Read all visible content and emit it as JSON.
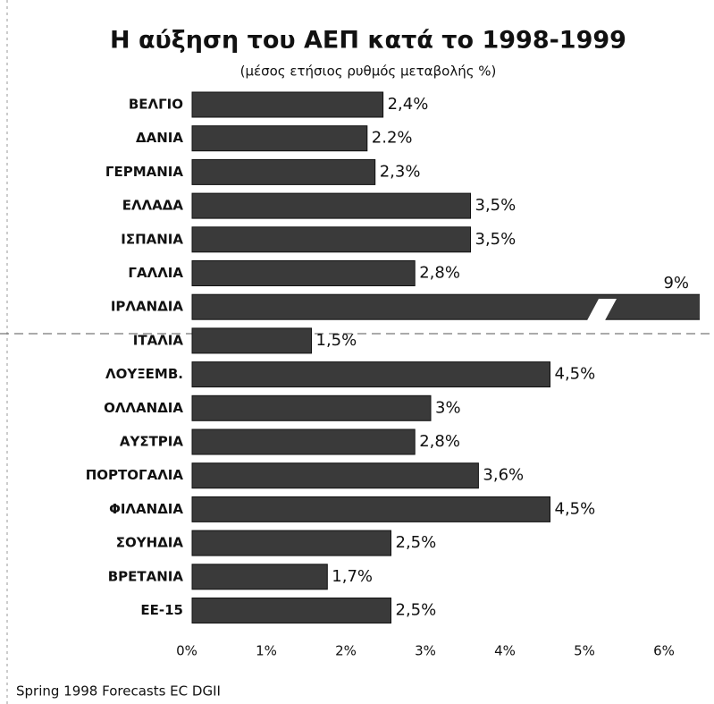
{
  "chart_data": {
    "type": "barh",
    "title": "Η αύξηση του ΑΕΠ κατά το 1998-1999",
    "subtitle": "(μέσος ετήσιος ρυθμός μεταβολής %)",
    "source": "Spring 1998 Forecasts EC DGII",
    "categories": [
      "ΒΕΛΓΙΟ",
      "ΔΑΝΙΑ",
      "ΓΕΡΜΑΝΙΑ",
      "ΕΛΛΑΔΑ",
      "ΙΣΠΑΝΙΑ",
      "ΓΑΛΛΙΑ",
      "ΙΡΛΑΝΔΙΑ",
      "ΙΤΑΛΙΑ",
      "ΛΟΥΞΕΜΒ.",
      "ΟΛΛΑΝΔΙΑ",
      "ΑΥΣΤΡΙΑ",
      "ΠΟΡΤΟΓΑΛΙΑ",
      "ΦΙΛΑΝΔΙΑ",
      "ΣΟΥΗΔΙΑ",
      "ΒΡΕΤΑΝΙΑ",
      "ΕΕ-15"
    ],
    "values": [
      2.4,
      2.2,
      2.3,
      3.5,
      3.5,
      2.8,
      9,
      1.5,
      4.5,
      3,
      2.8,
      3.6,
      4.5,
      2.5,
      1.7,
      2.5
    ],
    "value_labels": [
      "2,4%",
      "2.2%",
      "2,3%",
      "3,5%",
      "3,5%",
      "2,8%",
      "9%",
      "1,5%",
      "4,5%",
      "3%",
      "2,8%",
      "3,6%",
      "4,5%",
      "2,5%",
      "1,7%",
      "2,5%"
    ],
    "color": "#3a3a3a",
    "xlim": [
      0,
      6
    ],
    "xticks": [
      {
        "value": 0,
        "label": "0%"
      },
      {
        "value": 1,
        "label": "1%"
      },
      {
        "value": 2,
        "label": "2%"
      },
      {
        "value": 3,
        "label": "3%"
      },
      {
        "value": 4,
        "label": "4%"
      },
      {
        "value": 5,
        "label": "5%"
      },
      {
        "value": 6,
        "label": "6%"
      }
    ]
  }
}
